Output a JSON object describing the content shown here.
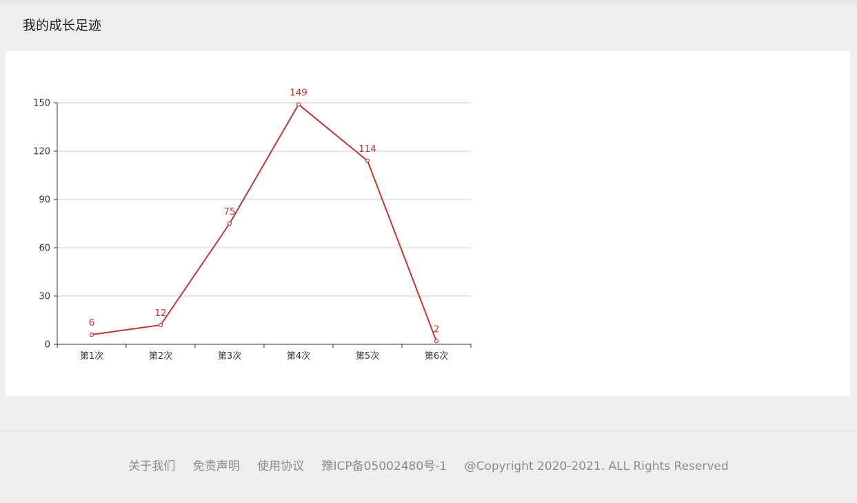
{
  "page": {
    "title": "我的成长足迹"
  },
  "chart_data": {
    "type": "line",
    "categories": [
      "第1次",
      "第2次",
      "第3次",
      "第4次",
      "第5次",
      "第6次"
    ],
    "series": [
      {
        "values": [
          6,
          12,
          75,
          149,
          114,
          2
        ],
        "color": "#c23531"
      }
    ],
    "ylim": [
      0,
      150
    ],
    "yticks": [
      0,
      30,
      60,
      90,
      120,
      150
    ],
    "grid": true,
    "data_labels": true
  },
  "footer": {
    "links": [
      "关于我们",
      "免责声明",
      "使用协议"
    ],
    "icp": "豫ICP备05002480号-1",
    "copyright": "@Copyright 2020-2021. ALL Rights Reserved"
  }
}
